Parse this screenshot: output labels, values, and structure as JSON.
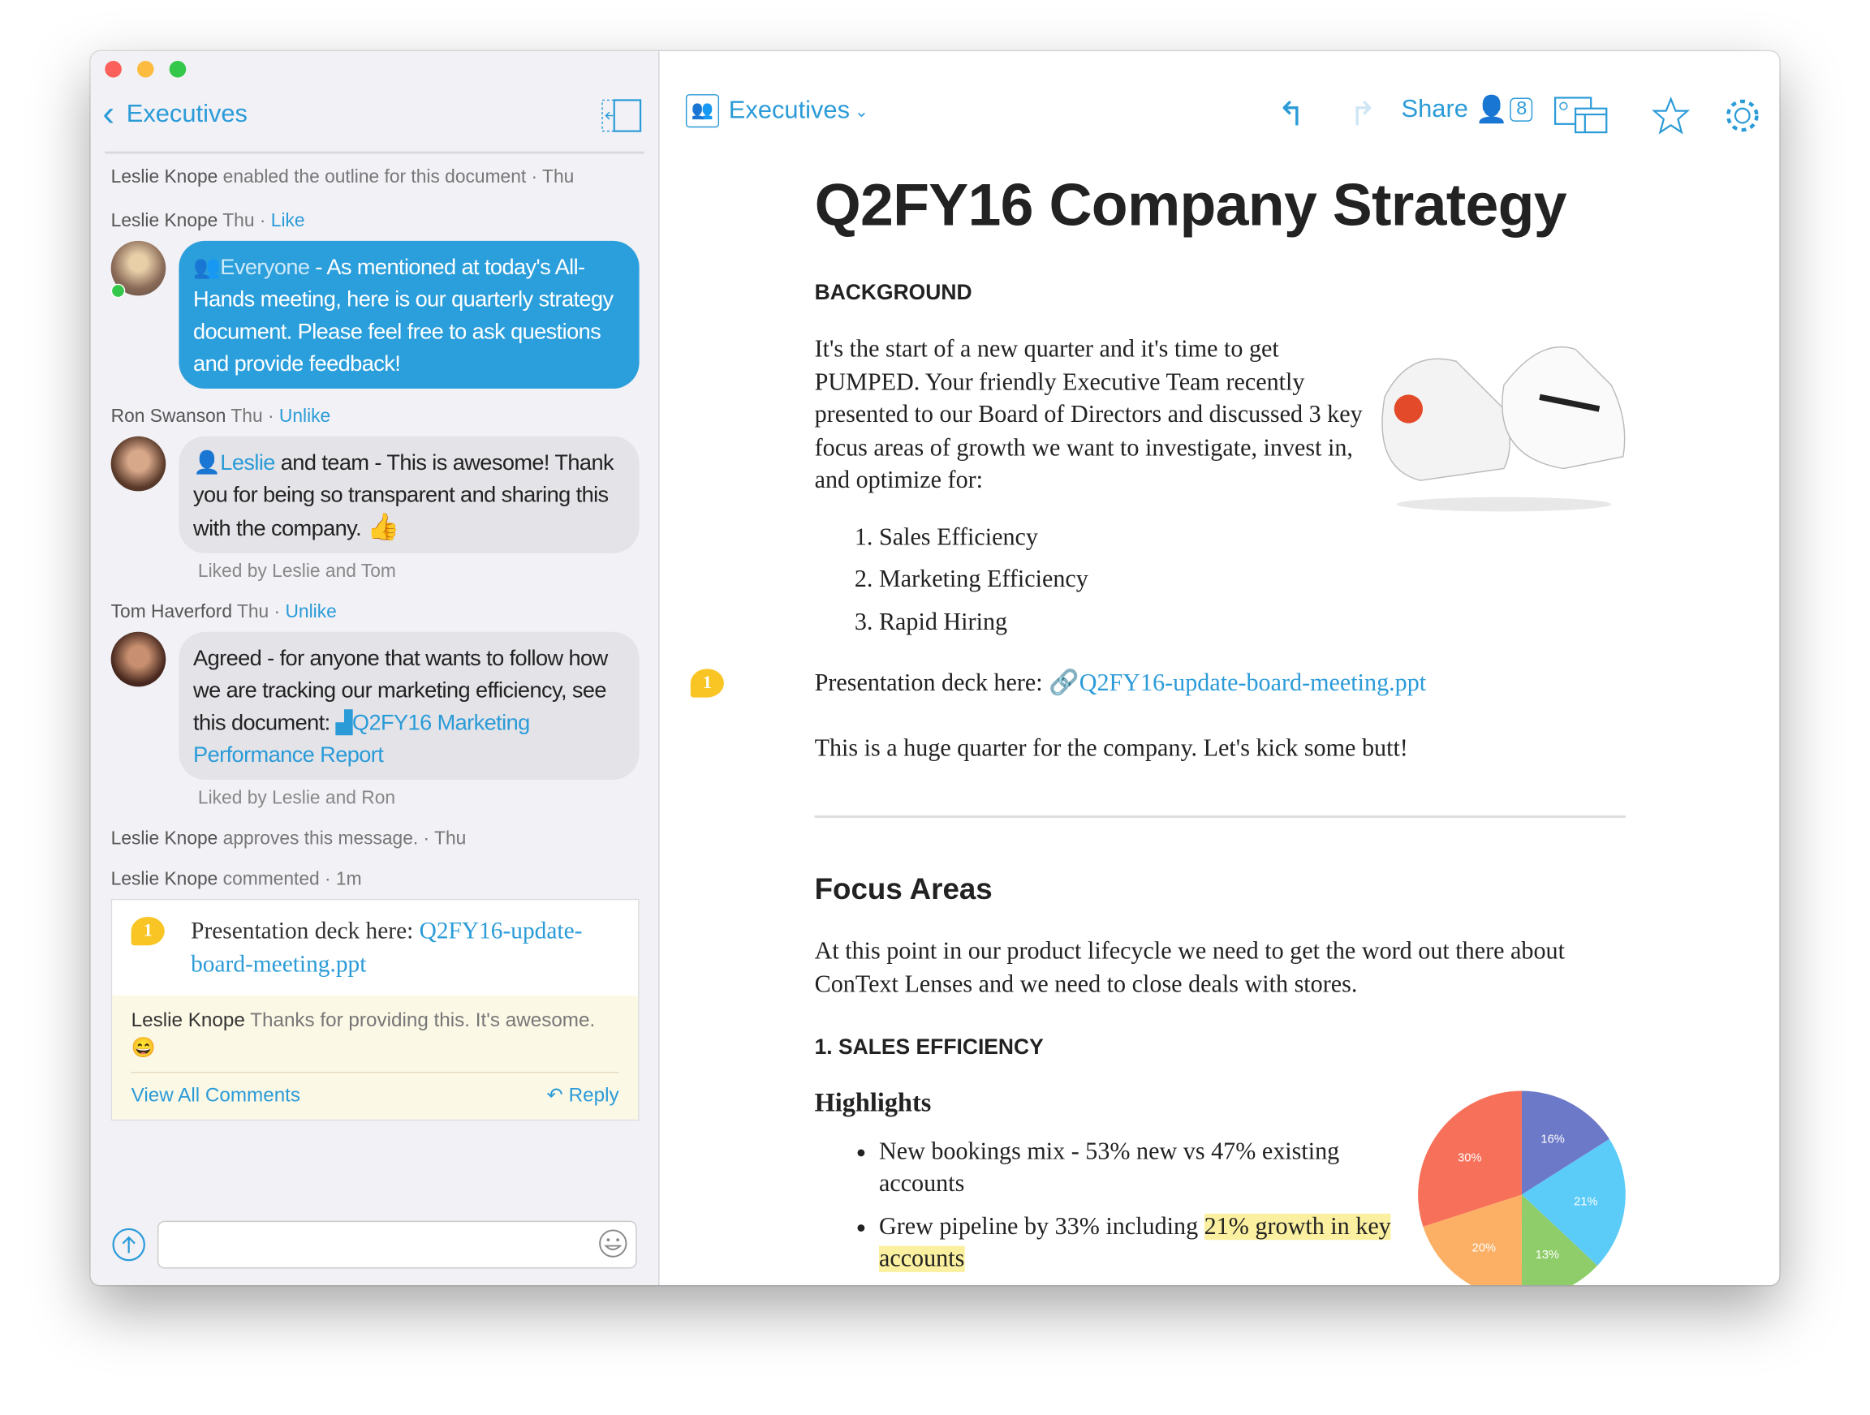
{
  "window": {
    "traffic_lights": [
      "#fc605b",
      "#fdbc40",
      "#34c84a"
    ]
  },
  "sidebar": {
    "back_label": "Executives",
    "events": [
      {
        "author": "Leslie Knope",
        "text": "enabled the outline for this document · Thu"
      }
    ],
    "messages": [
      {
        "author": "Leslie Knope",
        "time": "Thu",
        "action": "Like",
        "mention": "Everyone",
        "text": " - As mentioned at today's All-Hands meeting, here is our quarterly strategy document. Please feel free to ask questions and provide feedback!",
        "online": true
      },
      {
        "author": "Ron Swanson",
        "time": "Thu",
        "action": "Unlike",
        "mention": "Leslie",
        "text": " and team - This is awesome! Thank you for being so transparent and sharing this with the company. ",
        "emoji": "👍",
        "liked_by": "Liked by Leslie and Tom"
      },
      {
        "author": "Tom Haverford",
        "time": "Thu",
        "action": "Unlike",
        "text": "Agreed - for anyone that wants to follow how we are tracking our marketing efficiency, see this document: ",
        "link": "Q2FY16 Marketing Performance Report",
        "liked_by": "Liked by Leslie and Ron"
      }
    ],
    "approval": {
      "author": "Leslie Knope",
      "text": "approves this message. · Thu"
    },
    "comment_event": {
      "author": "Leslie Knope",
      "text": "commented · 1m"
    },
    "comment_card": {
      "badge": "1",
      "text": "Presentation deck here: ",
      "link": "Q2FY16-update-board-meeting.ppt",
      "reply_author": "Leslie Knope",
      "reply_text": "Thanks for providing this. It's awesome.",
      "reply_emoji": "😄",
      "view_all": "View All Comments",
      "reply_label": "Reply"
    },
    "composer": {
      "placeholder": ""
    }
  },
  "toolbar": {
    "folder": "Executives",
    "share_label": "Share",
    "share_count": "8",
    "icons": [
      "undo-icon",
      "redo-icon",
      "share-people-icon",
      "media-layout-icon",
      "star-icon",
      "gear-icon"
    ]
  },
  "document": {
    "title": "Q2FY16 Company Strategy",
    "background_heading": "BACKGROUND",
    "intro": "It's the start of a new quarter and it's time to get PUMPED. Your friendly Executive Team recently presented to our Board of Directors and discussed 3 key focus  areas of growth we want to investigate, invest in, and optimize for:",
    "focus_list": [
      "Sales Efficiency",
      "Marketing Efficiency",
      "Rapid Hiring"
    ],
    "deck_badge": "1",
    "deck_text": "Presentation deck here: ",
    "deck_link": "Q2FY16-update-board-meeting.ppt",
    "kick": "This is a huge quarter for the company. Let's kick some butt!",
    "focus_heading": "Focus Areas",
    "focus_text": "At this point in our product lifecycle we need to get the word out there about ConText Lenses and we need to close deals with stores.",
    "sales_heading": "1. SALES EFFICIENCY",
    "highlights_heading": "Highlights",
    "bullets": [
      {
        "text": "New bookings mix - 53% new vs 47% existing accounts"
      },
      {
        "pre": "Grew pipeline by 33% including ",
        "highlight": "21% growth in key accounts"
      }
    ],
    "highlight_color": "#fbf0a0"
  },
  "chart_data": {
    "type": "pie",
    "values": [
      16,
      21,
      13,
      20,
      30
    ],
    "labels": [
      "16%",
      "21%",
      "13%",
      "20%",
      "30%"
    ],
    "colors": [
      "#6c79c8",
      "#5bcbf8",
      "#8fcd6a",
      "#fbb065",
      "#f7705a"
    ],
    "start": "top",
    "direction": "clockwise"
  }
}
